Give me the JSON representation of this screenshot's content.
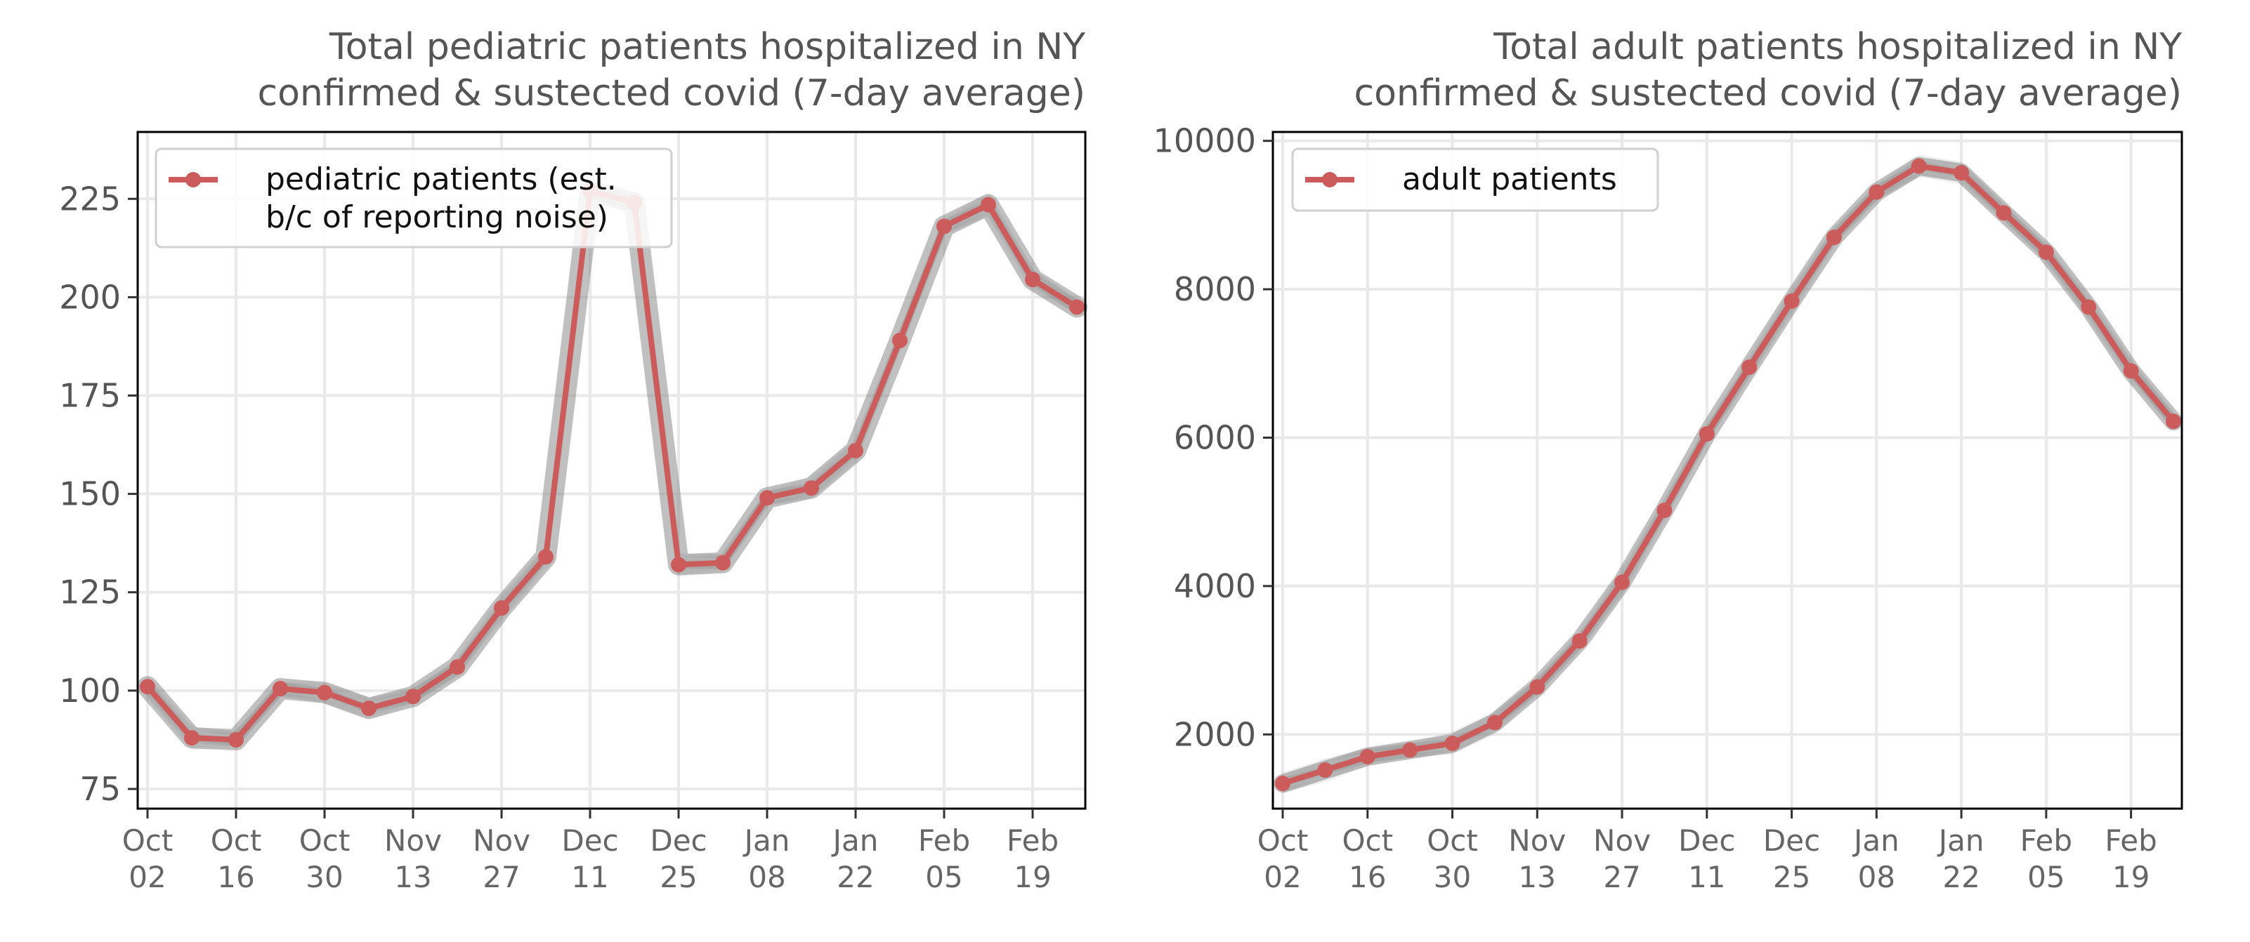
{
  "colors": {
    "series": "#cc5c5c",
    "ensemble": "#8c8c8c",
    "axis_text": "#555555",
    "tick_label": "#666666",
    "grid": "#e9e9e9"
  },
  "chart_data": [
    {
      "type": "line",
      "title": "Total pediatric patients hospitalized in NY\nconfirmed & sustected covid (7-day average)",
      "title_lines": [
        "Total pediatric patients hospitalized in NY",
        "confirmed & sustected covid (7-day average)"
      ],
      "legend": {
        "placement": "top-left",
        "lines": [
          "pediatric patients (est.",
          "b/c of reporting noise)"
        ]
      },
      "x_tick_labels": [
        [
          "Oct",
          "02"
        ],
        [
          "Oct",
          "16"
        ],
        [
          "Oct",
          "30"
        ],
        [
          "Nov",
          "13"
        ],
        [
          "Nov",
          "27"
        ],
        [
          "Dec",
          "11"
        ],
        [
          "Dec",
          "25"
        ],
        [
          "Jan",
          "08"
        ],
        [
          "Jan",
          "22"
        ],
        [
          "Feb",
          "05"
        ],
        [
          "Feb",
          "19"
        ]
      ],
      "x": [
        "2021-10-02",
        "2021-10-09",
        "2021-10-16",
        "2021-10-23",
        "2021-10-30",
        "2021-11-06",
        "2021-11-13",
        "2021-11-20",
        "2021-11-27",
        "2021-12-04",
        "2021-12-11",
        "2021-12-18",
        "2021-12-25",
        "2022-01-01",
        "2022-01-08",
        "2022-01-15",
        "2022-01-22",
        "2022-01-29",
        "2022-02-05",
        "2022-02-12",
        "2022-02-19",
        "2022-02-26"
      ],
      "yticks": [
        75,
        100,
        125,
        150,
        175,
        200,
        225
      ],
      "ylim": [
        70,
        242
      ],
      "grid": true,
      "ensemble_band": true,
      "series": [
        {
          "name": "pediatric patients (est. b/c of reporting noise)",
          "values": [
            101,
            88,
            87.5,
            100.5,
            99.5,
            95.5,
            98.5,
            106,
            121,
            134,
            227,
            224,
            132,
            132.5,
            149,
            151.5,
            161,
            189,
            218,
            223.5,
            204.5,
            197.5
          ]
        }
      ]
    },
    {
      "type": "line",
      "title": "Total adult patients hospitalized in NY\nconfirmed & sustected covid (7-day average)",
      "title_lines": [
        "Total adult patients hospitalized in NY",
        "confirmed & sustected covid (7-day average)"
      ],
      "legend": {
        "placement": "top-left",
        "lines": [
          "adult patients"
        ]
      },
      "x_tick_labels": [
        [
          "Oct",
          "02"
        ],
        [
          "Oct",
          "16"
        ],
        [
          "Oct",
          "30"
        ],
        [
          "Nov",
          "13"
        ],
        [
          "Nov",
          "27"
        ],
        [
          "Dec",
          "11"
        ],
        [
          "Dec",
          "25"
        ],
        [
          "Jan",
          "08"
        ],
        [
          "Jan",
          "22"
        ],
        [
          "Feb",
          "05"
        ],
        [
          "Feb",
          "19"
        ]
      ],
      "x": [
        "2021-10-02",
        "2021-10-09",
        "2021-10-16",
        "2021-10-23",
        "2021-10-30",
        "2021-11-06",
        "2021-11-13",
        "2021-11-20",
        "2021-11-27",
        "2021-12-04",
        "2021-12-11",
        "2021-12-18",
        "2021-12-25",
        "2022-01-01",
        "2022-01-08",
        "2022-01-15",
        "2022-01-22",
        "2022-01-29",
        "2022-02-05",
        "2022-02-12",
        "2022-02-19",
        "2022-02-26"
      ],
      "yticks": [
        2000,
        4000,
        6000,
        8000,
        10000
      ],
      "ylim": [
        1000,
        10120
      ],
      "grid": true,
      "ensemble_band": true,
      "series": [
        {
          "name": "adult patients",
          "values": [
            1340,
            1520,
            1700,
            1790,
            1880,
            2160,
            2640,
            3260,
            4050,
            5020,
            6050,
            6950,
            7840,
            8700,
            9310,
            9660,
            9570,
            9030,
            8500,
            7760,
            6900,
            6220
          ]
        }
      ]
    }
  ]
}
